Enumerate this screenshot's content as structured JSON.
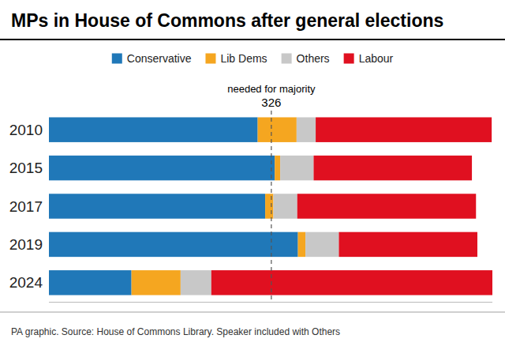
{
  "chart_data": {
    "type": "bar",
    "orientation": "horizontal",
    "stacked": true,
    "title": "MPs in House of Commons after general elections",
    "categories": [
      "2010",
      "2015",
      "2017",
      "2019",
      "2024"
    ],
    "series": [
      {
        "name": "Conservative",
        "color": "#2078B8",
        "values": [
          306,
          331,
          317,
          365,
          121
        ]
      },
      {
        "name": "Lib Dems",
        "color": "#F5A620",
        "values": [
          57,
          8,
          12,
          11,
          72
        ]
      },
      {
        "name": "Others",
        "color": "#C8C8C8",
        "values": [
          28,
          49,
          35,
          49,
          45
        ]
      },
      {
        "name": "Labour",
        "color": "#E01020",
        "values": [
          258,
          232,
          262,
          203,
          412
        ]
      }
    ],
    "xlim": [
      0,
      650
    ],
    "tick_labels": "y",
    "grid": false,
    "legend": "top",
    "annotations": [
      {
        "x": 326,
        "text": "326",
        "line_style": "dashed"
      },
      {
        "x": 326,
        "text": "needed for majority"
      }
    ],
    "source": "PA graphic. Source: House of Commons Library. Speaker included with Others"
  }
}
